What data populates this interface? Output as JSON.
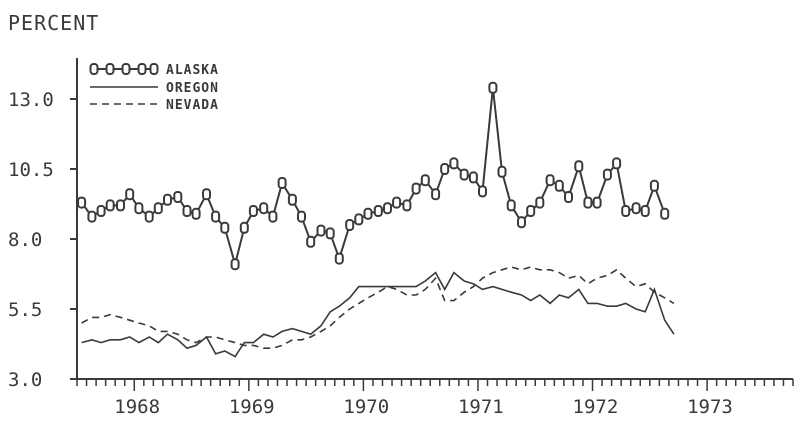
{
  "chart_data": {
    "type": "line",
    "ylabel": "PERCENT",
    "ylim": [
      3.0,
      15.0
    ],
    "xlim": [
      1967.5,
      1973.75
    ],
    "y_ticks": [
      "3.0",
      "5.5",
      "8.0",
      "10.5",
      "13.0"
    ],
    "x_ticks": [
      "1968",
      "1969",
      "1970",
      "1971",
      "1972",
      "1973"
    ],
    "x_tick_values": [
      1968,
      1969,
      1970,
      1971,
      1972,
      1973
    ],
    "grid": false,
    "legend_position": "top-left",
    "colors": {
      "ink": "#3a3a3a",
      "background": "#ffffff"
    },
    "series": [
      {
        "name": "ALASKA",
        "style": "solid-with-markers",
        "x": [
          1967.54,
          1967.63,
          1967.71,
          1967.79,
          1967.88,
          1967.96,
          1968.04,
          1968.13,
          1968.21,
          1968.29,
          1968.38,
          1968.46,
          1968.54,
          1968.63,
          1968.71,
          1968.79,
          1968.88,
          1968.96,
          1969.04,
          1969.13,
          1969.21,
          1969.29,
          1969.38,
          1969.46,
          1969.54,
          1969.63,
          1969.71,
          1969.79,
          1969.88,
          1969.96,
          1970.04,
          1970.13,
          1970.21,
          1970.29,
          1970.38,
          1970.46,
          1970.54,
          1970.63,
          1970.71,
          1970.79,
          1970.88,
          1970.96,
          1971.04,
          1971.13,
          1971.21,
          1971.29,
          1971.38,
          1971.46,
          1971.54,
          1971.63,
          1971.71,
          1971.79,
          1971.88,
          1971.96,
          1972.04,
          1972.13,
          1972.21,
          1972.29,
          1972.38,
          1972.46,
          1972.54,
          1972.63,
          1972.71
        ],
        "values": [
          9.3,
          8.8,
          9.0,
          9.2,
          9.2,
          9.6,
          9.1,
          8.8,
          9.1,
          9.4,
          9.5,
          9.0,
          8.9,
          9.6,
          8.8,
          8.4,
          7.1,
          8.4,
          9.0,
          9.1,
          8.8,
          10.0,
          9.4,
          8.8,
          7.9,
          8.3,
          8.2,
          7.3,
          8.5,
          8.7,
          8.9,
          9.0,
          9.1,
          9.3,
          9.2,
          9.8,
          10.1,
          9.6,
          10.5,
          10.7,
          10.3,
          10.2,
          9.7,
          13.4,
          10.4,
          9.2,
          8.6,
          9.0,
          9.3,
          10.1,
          9.9,
          9.5,
          10.6,
          9.3,
          9.3,
          10.3,
          10.7,
          9.0,
          9.1,
          9.0,
          9.9,
          8.9,
          null
        ]
      },
      {
        "name": "OREGON",
        "style": "solid",
        "x": [
          1967.54,
          1967.63,
          1967.71,
          1967.79,
          1967.88,
          1967.96,
          1968.04,
          1968.13,
          1968.21,
          1968.29,
          1968.38,
          1968.46,
          1968.54,
          1968.63,
          1968.71,
          1968.79,
          1968.88,
          1968.96,
          1969.04,
          1969.13,
          1969.21,
          1969.29,
          1969.38,
          1969.46,
          1969.54,
          1969.63,
          1969.71,
          1969.79,
          1969.88,
          1969.96,
          1970.04,
          1970.13,
          1970.21,
          1970.29,
          1970.38,
          1970.46,
          1970.54,
          1970.63,
          1970.71,
          1970.79,
          1970.88,
          1970.96,
          1971.04,
          1971.13,
          1971.21,
          1971.29,
          1971.38,
          1971.46,
          1971.54,
          1971.63,
          1971.71,
          1971.79,
          1971.88,
          1971.96,
          1972.04,
          1972.13,
          1972.21,
          1972.29,
          1972.38,
          1972.46,
          1972.54,
          1972.63,
          1972.71
        ],
        "values": [
          4.3,
          4.4,
          4.3,
          4.4,
          4.4,
          4.5,
          4.3,
          4.5,
          4.3,
          4.6,
          4.4,
          4.1,
          4.2,
          4.5,
          3.9,
          4.0,
          3.8,
          4.3,
          4.3,
          4.6,
          4.5,
          4.7,
          4.8,
          4.7,
          4.6,
          4.9,
          5.4,
          5.6,
          5.9,
          6.3,
          6.3,
          6.3,
          6.3,
          6.3,
          6.3,
          6.3,
          6.5,
          6.8,
          6.2,
          6.8,
          6.5,
          6.4,
          6.2,
          6.3,
          6.2,
          6.1,
          6.0,
          5.8,
          6.0,
          5.7,
          6.0,
          5.9,
          6.2,
          5.7,
          5.7,
          5.6,
          5.6,
          5.7,
          5.5,
          5.4,
          6.2,
          5.1,
          4.6
        ]
      },
      {
        "name": "NEVADA",
        "style": "dashed",
        "x": [
          1967.54,
          1967.63,
          1967.71,
          1967.79,
          1967.88,
          1967.96,
          1968.04,
          1968.13,
          1968.21,
          1968.29,
          1968.38,
          1968.46,
          1968.54,
          1968.63,
          1968.71,
          1968.79,
          1968.88,
          1968.96,
          1969.04,
          1969.13,
          1969.21,
          1969.29,
          1969.38,
          1969.46,
          1969.54,
          1969.63,
          1969.71,
          1969.79,
          1969.88,
          1969.96,
          1970.04,
          1970.13,
          1970.21,
          1970.29,
          1970.38,
          1970.46,
          1970.54,
          1970.63,
          1970.71,
          1970.79,
          1970.88,
          1970.96,
          1971.04,
          1971.13,
          1971.21,
          1971.29,
          1971.38,
          1971.46,
          1971.54,
          1971.63,
          1971.71,
          1971.79,
          1971.88,
          1971.96,
          1972.04,
          1972.13,
          1972.21,
          1972.29,
          1972.38,
          1972.46,
          1972.54,
          1972.63,
          1972.71
        ],
        "values": [
          5.0,
          5.2,
          5.2,
          5.3,
          5.2,
          5.1,
          5.0,
          4.9,
          4.7,
          4.7,
          4.6,
          4.4,
          4.3,
          4.5,
          4.5,
          4.4,
          4.3,
          4.2,
          4.2,
          4.1,
          4.1,
          4.2,
          4.4,
          4.4,
          4.5,
          4.7,
          4.9,
          5.2,
          5.5,
          5.7,
          5.9,
          6.1,
          6.3,
          6.2,
          6.0,
          6.0,
          6.2,
          6.6,
          5.8,
          5.8,
          6.1,
          6.3,
          6.6,
          6.8,
          6.9,
          7.0,
          6.9,
          7.0,
          6.9,
          6.9,
          6.8,
          6.6,
          6.7,
          6.4,
          6.6,
          6.7,
          6.9,
          6.6,
          6.3,
          6.4,
          6.1,
          5.9,
          5.7
        ]
      }
    ]
  }
}
